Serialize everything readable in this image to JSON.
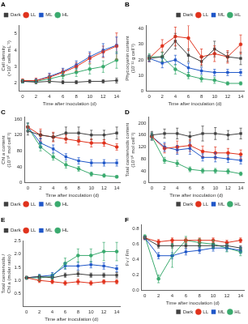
{
  "chart_data": [
    {
      "type": "line",
      "title": "A",
      "ylabel": "Cell density\n(×10⁷ cells mL⁻¹)",
      "xlabel": "Time after inoculation (d)",
      "x": [
        0,
        2,
        4,
        6,
        8,
        10,
        12,
        14
      ],
      "xlim": [
        -0.5,
        14.5
      ],
      "xticks": [
        0,
        2,
        4,
        6,
        8,
        10,
        12,
        14
      ],
      "ylim": [
        1.5,
        5.5
      ],
      "yticks": [
        2,
        3,
        4,
        5
      ],
      "grid": false,
      "legend": "upper left",
      "series": [
        {
          "name": "Dark",
          "color": "#404040",
          "marker": "square",
          "line_style": "solid",
          "values": [
            2.1,
            2.05,
            2.1,
            2.05,
            2.05,
            2.1,
            2.1,
            2.15
          ],
          "errors": [
            0.1,
            0.1,
            0.1,
            0.1,
            0.1,
            0.1,
            0.1,
            0.15
          ]
        },
        {
          "name": "LL",
          "color": "#e0321c",
          "marker": "circle",
          "line_style": "solid",
          "values": [
            2.15,
            2.15,
            2.35,
            2.65,
            3.0,
            3.5,
            3.9,
            4.25
          ],
          "errors": [
            0.1,
            0.15,
            0.2,
            0.2,
            0.25,
            0.3,
            0.35,
            0.8
          ]
        },
        {
          "name": "ML",
          "color": "#1e56c8",
          "marker": "square",
          "line_style": "solid",
          "values": [
            2.1,
            2.15,
            2.4,
            2.7,
            3.1,
            3.6,
            4.0,
            4.3
          ],
          "errors": [
            0.1,
            0.1,
            0.2,
            0.2,
            0.25,
            0.3,
            0.4,
            0.5
          ]
        },
        {
          "name": "HL",
          "color": "#3aaa6e",
          "marker": "circle",
          "line_style": "solid",
          "values": [
            2.1,
            2.1,
            2.25,
            2.45,
            2.65,
            2.85,
            3.0,
            3.4
          ],
          "errors": [
            0.1,
            0.1,
            0.15,
            0.2,
            0.25,
            0.3,
            0.35,
            0.5
          ]
        }
      ]
    },
    {
      "type": "line",
      "title": "B",
      "ylabel": "Phycocyanin content\n(10⁻¹² g cell⁻¹)",
      "xlabel": "Time after inoculation (d)",
      "x": [
        0,
        2,
        4,
        6,
        8,
        10,
        12,
        14
      ],
      "xlim": [
        -0.5,
        14.5
      ],
      "xticks": [
        0,
        2,
        4,
        6,
        8,
        10,
        12,
        14
      ],
      "ylim": [
        0,
        42
      ],
      "yticks": [
        0,
        10,
        20,
        30,
        40
      ],
      "grid": false,
      "legend": "upper right",
      "series": [
        {
          "name": "Dark",
          "color": "#404040",
          "marker": "square",
          "line_style": "solid",
          "values": [
            21,
            22,
            32,
            23,
            19,
            27,
            22,
            21
          ],
          "errors": [
            2,
            3,
            5,
            4,
            3,
            5,
            3,
            4
          ]
        },
        {
          "name": "LL",
          "color": "#e0321c",
          "marker": "circle",
          "line_style": "solid",
          "values": [
            21,
            29,
            35,
            34,
            22,
            24,
            22,
            30
          ],
          "errors": [
            2,
            4,
            6,
            8,
            5,
            5,
            4,
            6
          ]
        },
        {
          "name": "ML",
          "color": "#1e56c8",
          "marker": "square",
          "line_style": "solid",
          "values": [
            21,
            18,
            20,
            15,
            13,
            12,
            12,
            12
          ],
          "errors": [
            2,
            3,
            3,
            3,
            2,
            2,
            2,
            2
          ]
        },
        {
          "name": "HL",
          "color": "#3aaa6e",
          "marker": "circle",
          "line_style": "solid",
          "values": [
            22,
            22,
            14,
            10,
            8,
            7,
            5,
            5
          ],
          "errors": [
            2,
            3,
            3,
            2,
            2,
            2,
            1,
            1
          ]
        }
      ]
    },
    {
      "type": "line",
      "title": "C",
      "ylabel": "Chl a content\n(10⁻¹⁶ mol cell⁻¹)",
      "xlabel": "Time after inoculation (d)",
      "x": [
        0,
        2,
        4,
        6,
        8,
        10,
        12,
        14
      ],
      "xlim": [
        -0.5,
        14.5
      ],
      "xticks": [
        0,
        2,
        4,
        6,
        8,
        10,
        12,
        14
      ],
      "ylim": [
        0,
        165
      ],
      "yticks": [
        0,
        40,
        80,
        120,
        160
      ],
      "grid": false,
      "legend": "lower left",
      "series": [
        {
          "name": "Dark",
          "color": "#404040",
          "marker": "square",
          "line_style": "solid",
          "values": [
            130,
            120,
            115,
            125,
            125,
            120,
            120,
            125
          ],
          "errors": [
            10,
            10,
            10,
            15,
            15,
            12,
            12,
            15
          ]
        },
        {
          "name": "LL",
          "color": "#e0321c",
          "marker": "circle",
          "line_style": "solid",
          "values": [
            140,
            120,
            115,
            110,
            105,
            100,
            100,
            90
          ],
          "errors": [
            10,
            15,
            12,
            10,
            10,
            10,
            8,
            8
          ]
        },
        {
          "name": "ML",
          "color": "#1e56c8",
          "marker": "square",
          "line_style": "solid",
          "values": [
            140,
            100,
            85,
            65,
            55,
            50,
            50,
            50
          ],
          "errors": [
            10,
            12,
            10,
            8,
            8,
            8,
            8,
            8
          ]
        },
        {
          "name": "HL",
          "color": "#3aaa6e",
          "marker": "circle",
          "line_style": "solid",
          "values": [
            140,
            90,
            65,
            45,
            35,
            22,
            18,
            15
          ],
          "errors": [
            10,
            10,
            8,
            8,
            6,
            5,
            4,
            3
          ]
        }
      ]
    },
    {
      "type": "line",
      "title": "D",
      "ylabel": "Total carotenoids content\n(10⁻¹⁶ mol cell⁻¹)",
      "xlabel": "Time after inoculation (d)",
      "x": [
        0,
        2,
        4,
        6,
        8,
        10,
        12,
        14
      ],
      "xlim": [
        -0.5,
        14.5
      ],
      "xticks": [
        0,
        2,
        4,
        6,
        8,
        10,
        12,
        14
      ],
      "ylim": [
        0,
        220
      ],
      "yticks": [
        0,
        40,
        80,
        120,
        160,
        200
      ],
      "grid": false,
      "legend": "lower right",
      "series": [
        {
          "name": "Dark",
          "color": "#404040",
          "marker": "square",
          "line_style": "solid",
          "values": [
            160,
            165,
            165,
            155,
            165,
            165,
            160,
            165
          ],
          "errors": [
            12,
            15,
            18,
            15,
            25,
            20,
            15,
            18
          ]
        },
        {
          "name": "LL",
          "color": "#e0321c",
          "marker": "circle",
          "line_style": "solid",
          "values": [
            155,
            115,
            120,
            125,
            105,
            100,
            100,
            95
          ],
          "errors": [
            12,
            15,
            20,
            20,
            18,
            20,
            15,
            15
          ]
        },
        {
          "name": "ML",
          "color": "#1e56c8",
          "marker": "square",
          "line_style": "solid",
          "values": [
            155,
            120,
            110,
            115,
            85,
            85,
            80,
            75
          ],
          "errors": [
            12,
            15,
            15,
            20,
            12,
            15,
            12,
            12
          ]
        },
        {
          "name": "HL",
          "color": "#3aaa6e",
          "marker": "circle",
          "line_style": "solid",
          "values": [
            155,
            75,
            65,
            45,
            40,
            40,
            38,
            30
          ],
          "errors": [
            12,
            10,
            10,
            8,
            8,
            8,
            8,
            6
          ]
        }
      ]
    },
    {
      "type": "line",
      "title": "E",
      "ylabel": "Total carotenoids /\nChl a (molar ratio)",
      "xlabel": "Time after inoculation (d)",
      "x": [
        0,
        2,
        4,
        6,
        8,
        10,
        12,
        14
      ],
      "xlim": [
        -0.5,
        14.5
      ],
      "xticks": [
        0,
        2,
        4,
        6,
        8,
        10,
        12,
        14
      ],
      "ylim": [
        0.0,
        2.5
      ],
      "yticks": [
        0.5,
        {
          "value": 1.0,
          "label": "1.0"
        },
        1.5,
        {
          "value": 2.0,
          "label": "2.0"
        },
        2.5
      ],
      "grid": false,
      "legend": "upper left",
      "series": [
        {
          "name": "Dark",
          "color": "#404040",
          "marker": "square",
          "line_style": "solid",
          "values": [
            1.1,
            1.15,
            1.1,
            1.2,
            1.25,
            1.2,
            1.2,
            1.2
          ],
          "errors": [
            0.05,
            0.06,
            0.06,
            0.08,
            0.1,
            0.08,
            0.08,
            0.1
          ]
        },
        {
          "name": "LL",
          "color": "#e0321c",
          "marker": "circle",
          "line_style": "solid",
          "values": [
            1.1,
            1.0,
            0.95,
            0.9,
            0.95,
            0.9,
            0.95,
            0.95
          ],
          "errors": [
            0.05,
            0.08,
            0.07,
            0.08,
            0.1,
            0.08,
            0.08,
            0.08
          ]
        },
        {
          "name": "ML",
          "color": "#1e56c8",
          "marker": "square",
          "line_style": "solid",
          "values": [
            1.1,
            1.15,
            1.2,
            1.55,
            1.55,
            1.6,
            1.55,
            1.45
          ],
          "errors": [
            0.05,
            0.08,
            0.1,
            0.12,
            0.15,
            0.12,
            0.12,
            0.12
          ]
        },
        {
          "name": "HL",
          "color": "#3aaa6e",
          "marker": "circle",
          "line_style": "solid",
          "values": [
            1.1,
            1.1,
            1.15,
            1.65,
            1.95,
            1.95,
            2.1,
            2.1
          ],
          "errors": [
            0.05,
            0.1,
            0.1,
            0.2,
            0.25,
            0.25,
            0.35,
            0.35
          ]
        }
      ]
    },
    {
      "type": "line",
      "title": "F",
      "ylabel": "Fv / Fm",
      "xlabel": "Time after inoculation (d)",
      "x": [
        0,
        2,
        4,
        6,
        8,
        10,
        12,
        14
      ],
      "xlim": [
        -0.5,
        14.5
      ],
      "xticks": [
        0,
        2,
        4,
        6,
        8,
        10,
        12,
        14
      ],
      "ylim": [
        0.0,
        0.85
      ],
      "yticks": [
        {
          "value": 0.0,
          "label": "0.0"
        },
        0.2,
        0.4,
        0.6,
        0.8
      ],
      "grid": false,
      "legend": "lower right",
      "series": [
        {
          "name": "Dark",
          "color": "#404040",
          "marker": "square",
          "line_style": "solid",
          "values": [
            0.68,
            0.58,
            0.58,
            0.58,
            0.58,
            0.58,
            0.58,
            0.55
          ],
          "errors": [
            0.02,
            0.03,
            0.03,
            0.03,
            0.03,
            0.03,
            0.03,
            0.03
          ]
        },
        {
          "name": "LL",
          "color": "#e0321c",
          "marker": "circle",
          "line_style": "solid",
          "values": [
            0.68,
            0.63,
            0.65,
            0.65,
            0.65,
            0.65,
            0.62,
            0.65
          ],
          "errors": [
            0.02,
            0.03,
            0.03,
            0.03,
            0.03,
            0.03,
            0.03,
            0.03
          ]
        },
        {
          "name": "ML",
          "color": "#1e56c8",
          "marker": "square",
          "line_style": "solid",
          "values": [
            0.68,
            0.45,
            0.45,
            0.5,
            0.52,
            0.55,
            0.55,
            0.52
          ],
          "errors": [
            0.02,
            0.04,
            0.04,
            0.04,
            0.04,
            0.04,
            0.04,
            0.04
          ]
        },
        {
          "name": "HL",
          "color": "#3aaa6e",
          "marker": "circle",
          "line_style": "solid",
          "values": [
            0.7,
            0.15,
            0.45,
            0.65,
            0.62,
            0.6,
            0.55,
            0.5
          ],
          "errors": [
            0.02,
            0.05,
            0.15,
            0.05,
            0.05,
            0.05,
            0.05,
            0.05
          ]
        }
      ]
    }
  ]
}
